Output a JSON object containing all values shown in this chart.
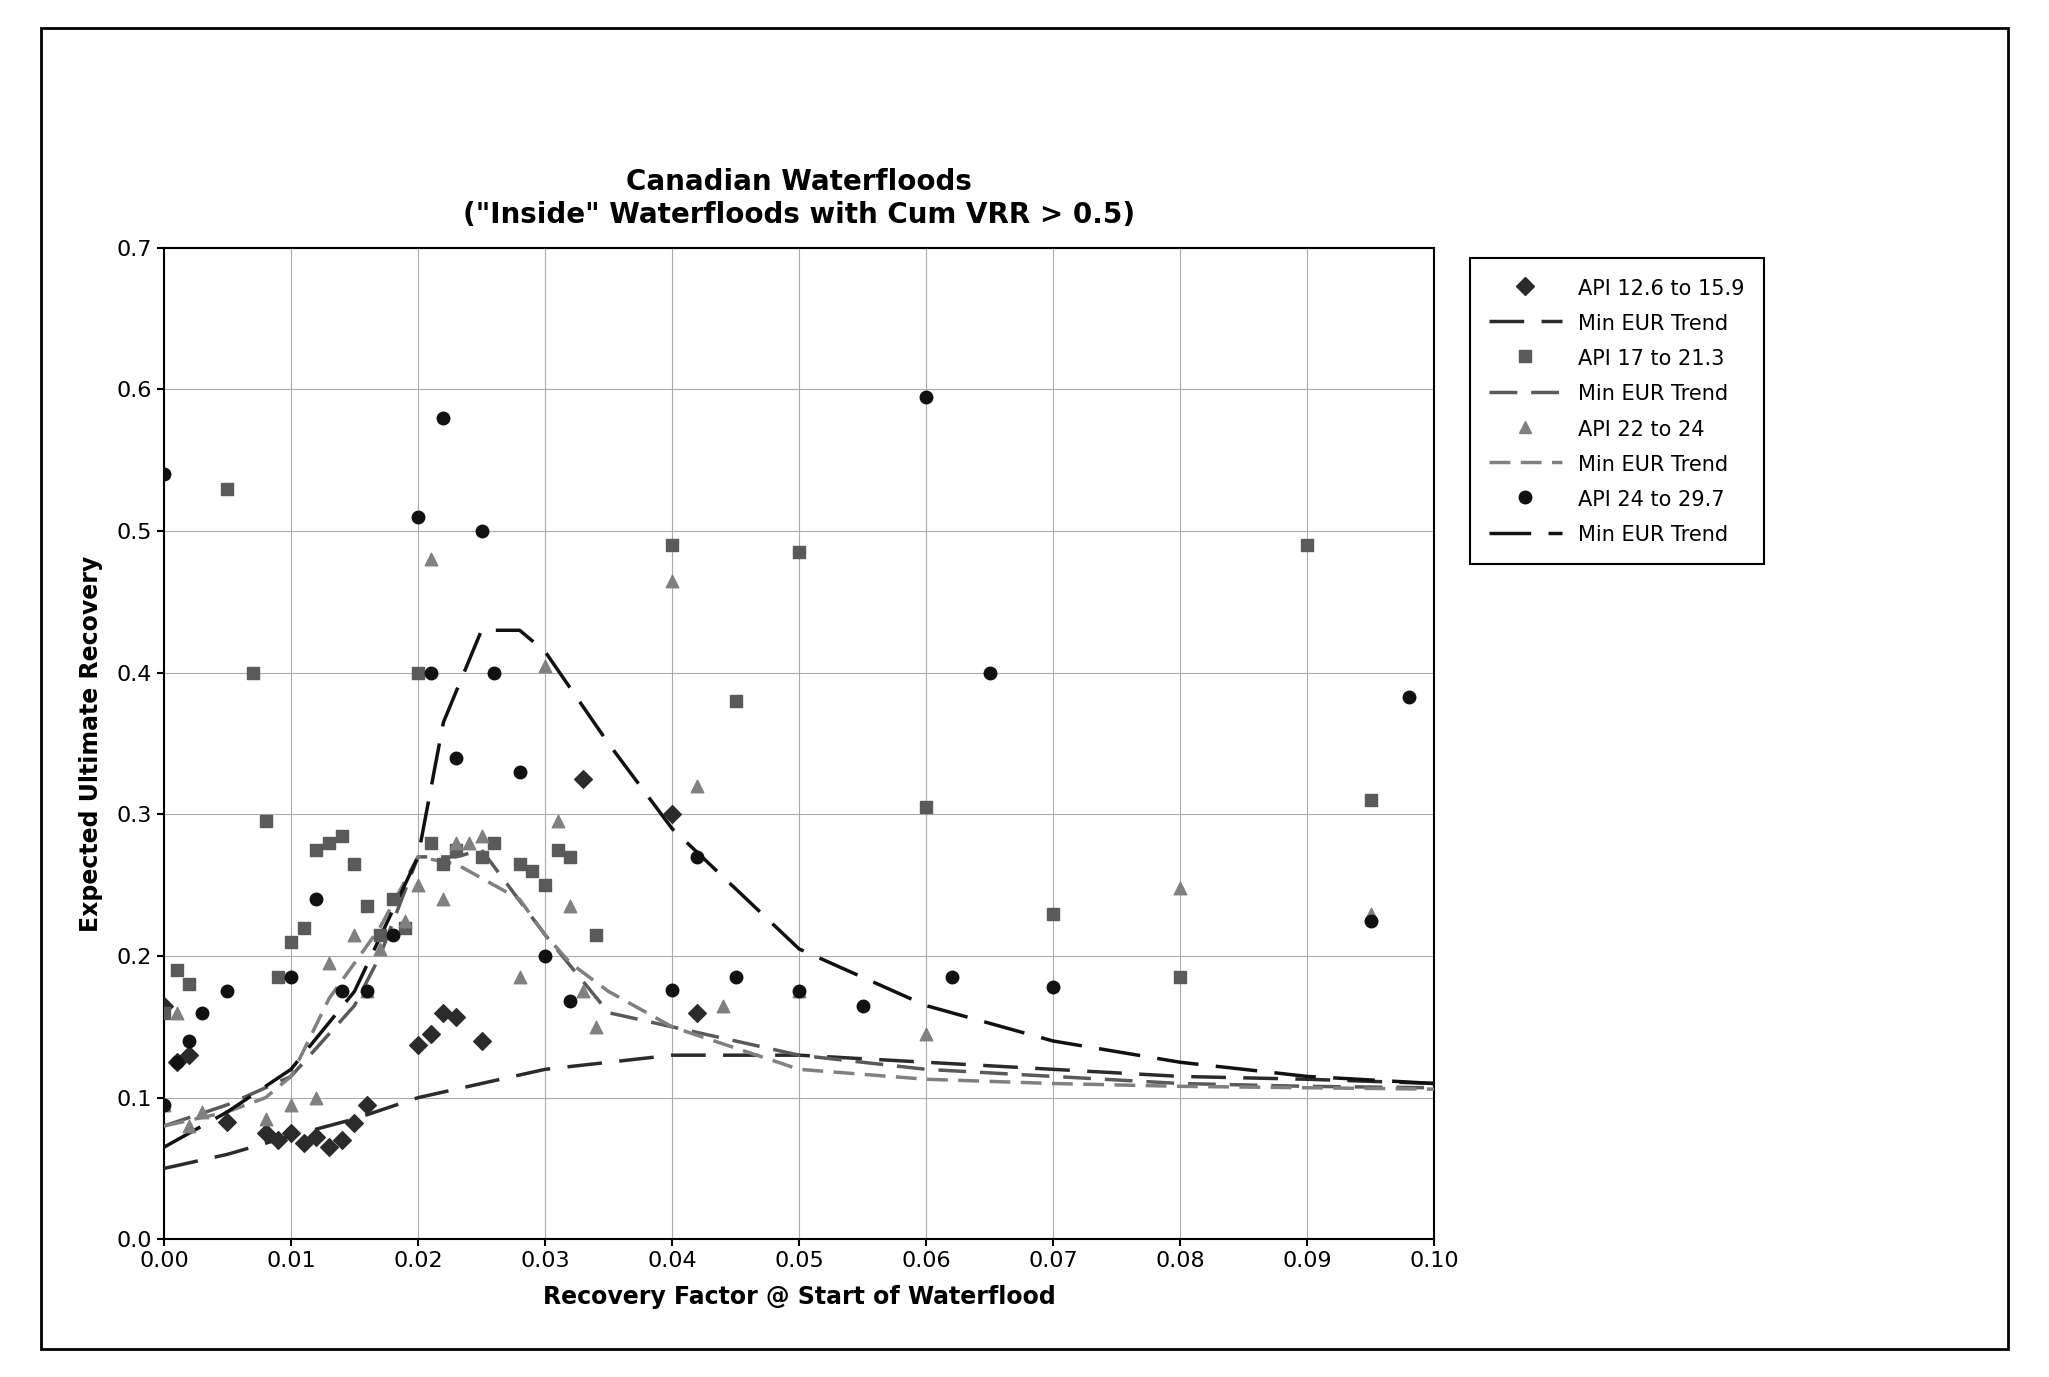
{
  "title_line1": "Canadian Waterfloods",
  "title_line2": "(\"Inside\" Waterfloods with Cum VRR > 0.5)",
  "xlabel": "Recovery Factor @ Start of Waterflood",
  "ylabel": "Expected Ultimate Recovery",
  "xlim": [
    0.0,
    0.1
  ],
  "ylim": [
    0.0,
    0.7
  ],
  "xticks": [
    0.0,
    0.01,
    0.02,
    0.03,
    0.04,
    0.05,
    0.06,
    0.07,
    0.08,
    0.09,
    0.1
  ],
  "yticks": [
    0.0,
    0.1,
    0.2,
    0.3,
    0.4,
    0.5,
    0.6,
    0.7
  ],
  "api_12_15_x": [
    0.0,
    0.001,
    0.002,
    0.005,
    0.008,
    0.009,
    0.01,
    0.011,
    0.012,
    0.013,
    0.014,
    0.015,
    0.016,
    0.02,
    0.021,
    0.022,
    0.023,
    0.025,
    0.033,
    0.04,
    0.042
  ],
  "api_12_15_y": [
    0.165,
    0.125,
    0.13,
    0.083,
    0.075,
    0.07,
    0.075,
    0.068,
    0.072,
    0.065,
    0.07,
    0.082,
    0.095,
    0.137,
    0.145,
    0.16,
    0.157,
    0.14,
    0.325,
    0.3,
    0.16
  ],
  "api_17_21_x": [
    0.0,
    0.001,
    0.002,
    0.005,
    0.007,
    0.008,
    0.009,
    0.01,
    0.011,
    0.012,
    0.013,
    0.014,
    0.015,
    0.016,
    0.017,
    0.018,
    0.019,
    0.02,
    0.021,
    0.022,
    0.023,
    0.025,
    0.026,
    0.028,
    0.029,
    0.03,
    0.031,
    0.032,
    0.034,
    0.04,
    0.045,
    0.05,
    0.06,
    0.07,
    0.08,
    0.09,
    0.095
  ],
  "api_17_21_y": [
    0.16,
    0.19,
    0.18,
    0.53,
    0.4,
    0.295,
    0.185,
    0.21,
    0.22,
    0.275,
    0.28,
    0.285,
    0.265,
    0.235,
    0.215,
    0.24,
    0.22,
    0.4,
    0.28,
    0.265,
    0.275,
    0.27,
    0.28,
    0.265,
    0.26,
    0.25,
    0.275,
    0.27,
    0.215,
    0.49,
    0.38,
    0.485,
    0.305,
    0.23,
    0.185,
    0.49,
    0.31
  ],
  "api_22_24_x": [
    0.0,
    0.001,
    0.002,
    0.003,
    0.008,
    0.01,
    0.012,
    0.013,
    0.015,
    0.016,
    0.017,
    0.019,
    0.02,
    0.021,
    0.022,
    0.023,
    0.024,
    0.025,
    0.028,
    0.03,
    0.031,
    0.032,
    0.033,
    0.034,
    0.04,
    0.042,
    0.044,
    0.05,
    0.06,
    0.08,
    0.095
  ],
  "api_22_24_y": [
    0.095,
    0.16,
    0.08,
    0.09,
    0.085,
    0.095,
    0.1,
    0.195,
    0.215,
    0.175,
    0.205,
    0.225,
    0.25,
    0.48,
    0.24,
    0.28,
    0.28,
    0.285,
    0.185,
    0.405,
    0.295,
    0.235,
    0.175,
    0.15,
    0.465,
    0.32,
    0.165,
    0.175,
    0.145,
    0.248,
    0.23
  ],
  "api_24_29_x": [
    0.0,
    0.0,
    0.001,
    0.002,
    0.003,
    0.005,
    0.01,
    0.012,
    0.014,
    0.016,
    0.018,
    0.02,
    0.021,
    0.022,
    0.023,
    0.025,
    0.026,
    0.028,
    0.03,
    0.032,
    0.04,
    0.042,
    0.045,
    0.05,
    0.055,
    0.06,
    0.062,
    0.065,
    0.07,
    0.095,
    0.098
  ],
  "api_24_29_y": [
    0.095,
    0.54,
    0.125,
    0.14,
    0.16,
    0.175,
    0.185,
    0.24,
    0.175,
    0.175,
    0.215,
    0.51,
    0.4,
    0.58,
    0.34,
    0.5,
    0.4,
    0.33,
    0.2,
    0.168,
    0.176,
    0.27,
    0.185,
    0.175,
    0.165,
    0.595,
    0.185,
    0.4,
    0.178,
    0.225,
    0.383
  ],
  "trend1_x": [
    0.0,
    0.005,
    0.01,
    0.015,
    0.02,
    0.025,
    0.03,
    0.04,
    0.05,
    0.06,
    0.07,
    0.08,
    0.09,
    0.1
  ],
  "trend1_y": [
    0.05,
    0.06,
    0.073,
    0.085,
    0.1,
    0.11,
    0.12,
    0.13,
    0.13,
    0.125,
    0.12,
    0.115,
    0.113,
    0.11
  ],
  "trend2_x": [
    0.0,
    0.005,
    0.01,
    0.015,
    0.017,
    0.02,
    0.023,
    0.025,
    0.03,
    0.035,
    0.04,
    0.05,
    0.06,
    0.07,
    0.08,
    0.09,
    0.1
  ],
  "trend2_y": [
    0.08,
    0.095,
    0.115,
    0.165,
    0.2,
    0.27,
    0.27,
    0.275,
    0.215,
    0.16,
    0.15,
    0.13,
    0.12,
    0.115,
    0.11,
    0.108,
    0.107
  ],
  "trend3_x": [
    0.0,
    0.005,
    0.008,
    0.01,
    0.013,
    0.015,
    0.017,
    0.02,
    0.023,
    0.025,
    0.028,
    0.03,
    0.032,
    0.035,
    0.038,
    0.04,
    0.045,
    0.05,
    0.06,
    0.07,
    0.08,
    0.09,
    0.1
  ],
  "trend3_y": [
    0.08,
    0.09,
    0.1,
    0.115,
    0.17,
    0.195,
    0.22,
    0.27,
    0.265,
    0.255,
    0.24,
    0.215,
    0.195,
    0.175,
    0.16,
    0.15,
    0.135,
    0.12,
    0.113,
    0.11,
    0.108,
    0.107,
    0.106
  ],
  "trend4_x": [
    0.0,
    0.005,
    0.01,
    0.015,
    0.02,
    0.022,
    0.025,
    0.028,
    0.03,
    0.035,
    0.04,
    0.05,
    0.06,
    0.07,
    0.08,
    0.09,
    0.1
  ],
  "trend4_y": [
    0.065,
    0.09,
    0.12,
    0.175,
    0.27,
    0.365,
    0.43,
    0.43,
    0.415,
    0.35,
    0.29,
    0.205,
    0.165,
    0.14,
    0.125,
    0.115,
    0.11
  ],
  "bg_color": "#ffffff",
  "plot_bg_color": "#ffffff",
  "grid_color": "#aaaaaa",
  "color1": "#2b2b2b",
  "color2": "#5a5a5a",
  "color3": "#808080",
  "color4": "#111111",
  "title_fontsize": 20,
  "label_fontsize": 17,
  "tick_fontsize": 16,
  "legend_fontsize": 15,
  "marker_size": 9,
  "line_width": 2.5
}
